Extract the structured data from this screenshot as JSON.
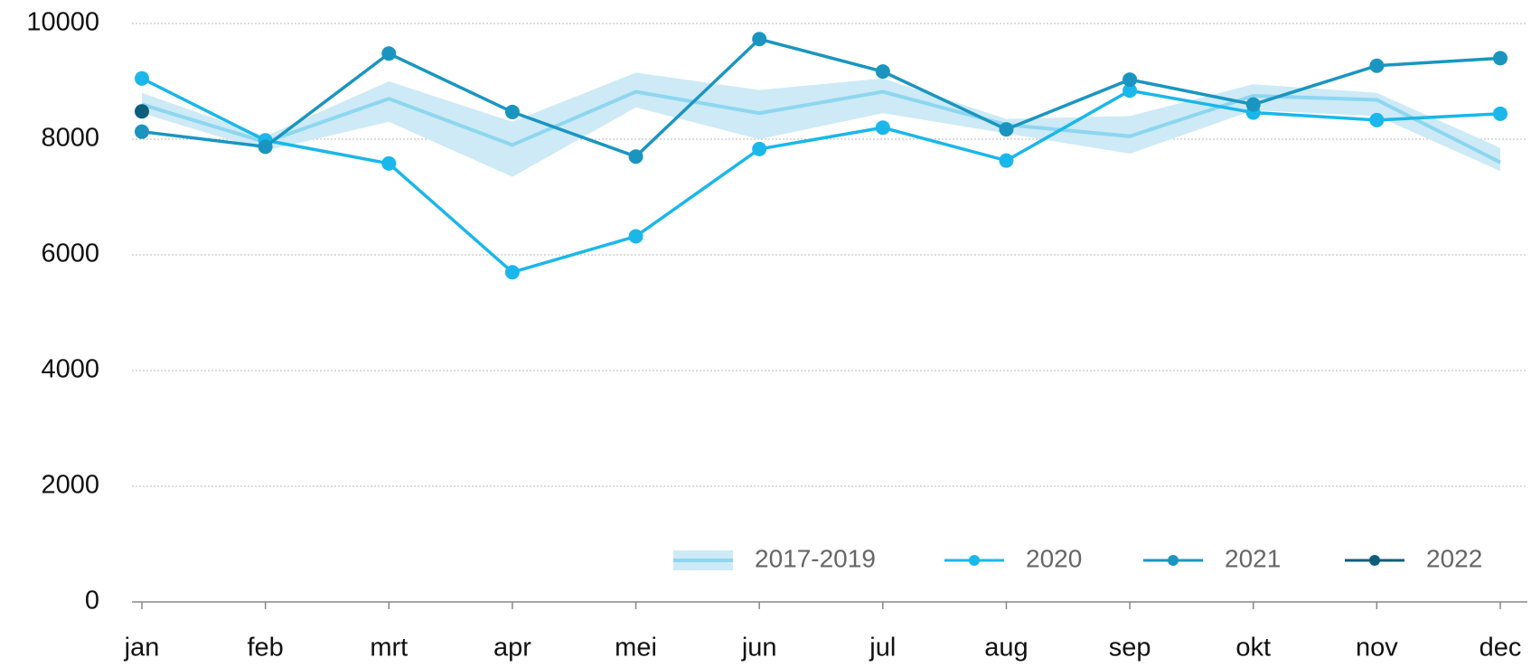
{
  "chart_data": {
    "type": "line",
    "categories": [
      "jan",
      "feb",
      "mrt",
      "apr",
      "mei",
      "jun",
      "jul",
      "aug",
      "sep",
      "okt",
      "nov",
      "dec"
    ],
    "series": [
      {
        "name": "2017-2019",
        "color": "#8dd6f0",
        "band_color": "#cdeaf6",
        "values": [
          8600,
          7950,
          8700,
          7900,
          8820,
          8450,
          8820,
          8250,
          8050,
          8750,
          8680,
          7600
        ],
        "low": [
          8450,
          7800,
          8300,
          7350,
          8550,
          8000,
          8450,
          8100,
          7750,
          8500,
          8400,
          7450
        ],
        "high": [
          8800,
          8050,
          9000,
          8300,
          9150,
          8850,
          9050,
          8350,
          8400,
          8950,
          8800,
          7850
        ]
      },
      {
        "name": "2020",
        "color": "#1ab7ea",
        "values": [
          9050,
          7980,
          7580,
          5700,
          6320,
          7830,
          8200,
          7630,
          8840,
          8460,
          8330,
          8440
        ]
      },
      {
        "name": "2021",
        "color": "#1a95c0",
        "values": [
          8130,
          7870,
          9480,
          8470,
          7700,
          9730,
          9170,
          8170,
          9030,
          8600,
          9270,
          9400
        ]
      },
      {
        "name": "2022",
        "color": "#0b5f7a",
        "values": [
          8480,
          null,
          null,
          null,
          null,
          null,
          null,
          null,
          null,
          null,
          null,
          null
        ]
      }
    ],
    "ylim": [
      0,
      10000
    ],
    "yticks": [
      0,
      2000,
      4000,
      6000,
      8000,
      10000
    ],
    "grid": true
  }
}
